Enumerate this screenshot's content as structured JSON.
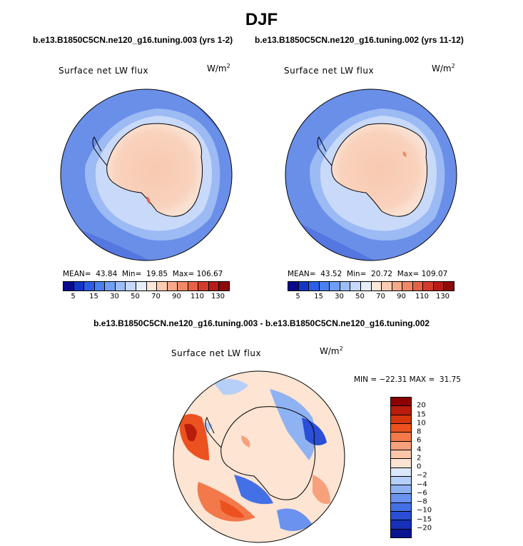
{
  "figure": {
    "title": "DJF",
    "diff_title": "b.e13.B1850C5CN.ne120_g16.tuning.003 - b.e13.B1850C5CN.ne120_g16.tuning.002"
  },
  "panels": [
    {
      "title": "b.e13.B1850C5CN.ne120_g16.tuning.003 (yrs 1-2)",
      "variable": "Surface net LW flux",
      "units": "W/m",
      "units_exp": "2",
      "stats": "MEAN=  43.84  Min=  19.85  Max= 106.67",
      "levels": [
        "5",
        "15",
        "30",
        "50",
        "70",
        "90",
        "110",
        "130"
      ],
      "colors": [
        "#0a0a8c",
        "#1436c8",
        "#2c5ee6",
        "#4a7ff0",
        "#6f9ef5",
        "#9cbdf8",
        "#c6d9fb",
        "#e6eefc",
        "#fde6d8",
        "#fbcbb2",
        "#f6a98a",
        "#f08865",
        "#e66244",
        "#d43c2a",
        "#b81c16",
        "#8c0a0a"
      ]
    },
    {
      "title": "b.e13.B1850C5CN.ne120_g16.tuning.002 (yrs 11-12)",
      "variable": "Surface net LW flux",
      "units": "W/m",
      "units_exp": "2",
      "stats": "MEAN=  43.52  Min=  20.72  Max= 109.07",
      "levels": [
        "5",
        "15",
        "30",
        "50",
        "70",
        "90",
        "110",
        "130"
      ],
      "colors": [
        "#0a0a8c",
        "#1436c8",
        "#2c5ee6",
        "#4a7ff0",
        "#6f9ef5",
        "#9cbdf8",
        "#c6d9fb",
        "#e6eefc",
        "#fde6d8",
        "#fbcbb2",
        "#f6a98a",
        "#f08865",
        "#e66244",
        "#d43c2a",
        "#b81c16",
        "#8c0a0a"
      ]
    }
  ],
  "diff": {
    "variable": "Surface net LW flux",
    "units": "W/m",
    "units_exp": "2",
    "minmax": "MIN = −22.31 MAX =  31.75",
    "levels": [
      "20",
      "15",
      "10",
      "8",
      "6",
      "4",
      "2",
      "0",
      "−2",
      "−4",
      "−6",
      "−8",
      "−10",
      "−15",
      "−20"
    ],
    "colors": [
      "#8c0000",
      "#b81c0c",
      "#d6360e",
      "#ec5220",
      "#f3784a",
      "#f7a07c",
      "#fac5a8",
      "#fde4d3",
      "#dbe8fb",
      "#b5cff8",
      "#8fb2f3",
      "#6a92ee",
      "#4470e6",
      "#2a4fd6",
      "#1630b8",
      "#0a1490"
    ]
  }
}
